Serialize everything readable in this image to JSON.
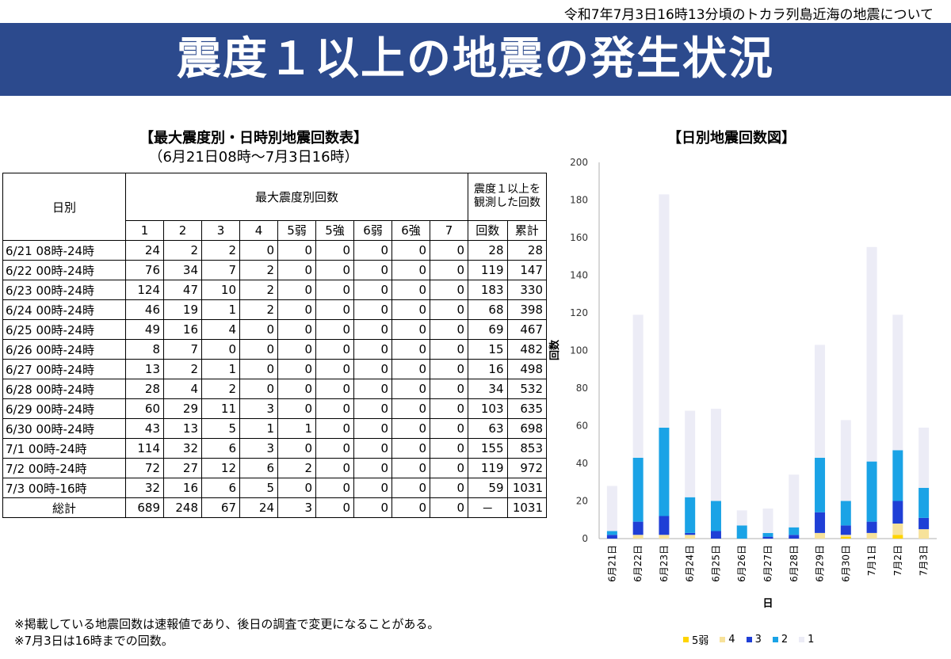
{
  "header": {
    "subtitle": "令和7年7月3日16時13分頃のトカラ列島近海の地震について",
    "title": "震度１以上の地震の発生状況"
  },
  "table": {
    "title": "【最大震度別・日時別地震回数表】",
    "period": "（6月21日08時～7月3日16時）",
    "day_header": "日別",
    "intensity_header": "最大震度別回数",
    "observed_header": "震度１以上を観測した回数",
    "columns": [
      "1",
      "2",
      "3",
      "4",
      "5弱",
      "5強",
      "6弱",
      "6強",
      "7"
    ],
    "count_header": "回数",
    "cumulative_header": "累計",
    "rows": [
      {
        "day": "6/21 08時-24時",
        "values": [
          24,
          2,
          2,
          0,
          0,
          0,
          0,
          0,
          0
        ],
        "count": "28",
        "cum": "28"
      },
      {
        "day": "6/22 00時-24時",
        "values": [
          76,
          34,
          7,
          2,
          0,
          0,
          0,
          0,
          0
        ],
        "count": "119",
        "cum": "147"
      },
      {
        "day": "6/23 00時-24時",
        "values": [
          124,
          47,
          10,
          2,
          0,
          0,
          0,
          0,
          0
        ],
        "count": "183",
        "cum": "330"
      },
      {
        "day": "6/24 00時-24時",
        "values": [
          46,
          19,
          1,
          2,
          0,
          0,
          0,
          0,
          0
        ],
        "count": "68",
        "cum": "398"
      },
      {
        "day": "6/25 00時-24時",
        "values": [
          49,
          16,
          4,
          0,
          0,
          0,
          0,
          0,
          0
        ],
        "count": "69",
        "cum": "467"
      },
      {
        "day": "6/26 00時-24時",
        "values": [
          8,
          7,
          0,
          0,
          0,
          0,
          0,
          0,
          0
        ],
        "count": "15",
        "cum": "482"
      },
      {
        "day": "6/27 00時-24時",
        "values": [
          13,
          2,
          1,
          0,
          0,
          0,
          0,
          0,
          0
        ],
        "count": "16",
        "cum": "498"
      },
      {
        "day": "6/28 00時-24時",
        "values": [
          28,
          4,
          2,
          0,
          0,
          0,
          0,
          0,
          0
        ],
        "count": "34",
        "cum": "532"
      },
      {
        "day": "6/29 00時-24時",
        "values": [
          60,
          29,
          11,
          3,
          0,
          0,
          0,
          0,
          0
        ],
        "count": "103",
        "cum": "635"
      },
      {
        "day": "6/30 00時-24時",
        "values": [
          43,
          13,
          5,
          1,
          1,
          0,
          0,
          0,
          0
        ],
        "count": "63",
        "cum": "698"
      },
      {
        "day": "7/1 00時-24時",
        "values": [
          114,
          32,
          6,
          3,
          0,
          0,
          0,
          0,
          0
        ],
        "count": "155",
        "cum": "853"
      },
      {
        "day": "7/2 00時-24時",
        "values": [
          72,
          27,
          12,
          6,
          2,
          0,
          0,
          0,
          0
        ],
        "count": "119",
        "cum": "972"
      },
      {
        "day": "7/3 00時-16時",
        "values": [
          32,
          16,
          6,
          5,
          0,
          0,
          0,
          0,
          0
        ],
        "count": "59",
        "cum": "1031"
      }
    ],
    "total_row": {
      "day": "総計",
      "values": [
        689,
        248,
        67,
        24,
        3,
        0,
        0,
        0,
        0
      ],
      "count": "－",
      "cum": "1031"
    }
  },
  "notes": [
    "※掲載している地震回数は速報値であり、後日の調査で変更になることがある。",
    "※7月3日は16時までの回数。"
  ],
  "chart_data": {
    "type": "bar",
    "stacked": true,
    "title": "【日別地震回数図】",
    "xlabel": "日",
    "ylabel": "回数",
    "ylim": [
      0,
      200
    ],
    "yticks": [
      0,
      20,
      40,
      60,
      80,
      100,
      120,
      140,
      160,
      180,
      200
    ],
    "categories": [
      "6月21日",
      "6月22日",
      "6月23日",
      "6月24日",
      "6月25日",
      "6月26日",
      "6月27日",
      "6月28日",
      "6月29日",
      "6月30日",
      "7月1日",
      "7月2日",
      "7月3日"
    ],
    "series": [
      {
        "name": "5弱",
        "color": "#ffd400",
        "values": [
          0,
          0,
          0,
          0,
          0,
          0,
          0,
          0,
          0,
          1,
          0,
          2,
          0
        ]
      },
      {
        "name": "4",
        "color": "#f7e29a",
        "values": [
          0,
          2,
          2,
          2,
          0,
          0,
          0,
          0,
          3,
          1,
          3,
          6,
          5
        ]
      },
      {
        "name": "3",
        "color": "#1f3fd6",
        "values": [
          2,
          7,
          10,
          1,
          4,
          0,
          1,
          2,
          11,
          5,
          6,
          12,
          6
        ]
      },
      {
        "name": "2",
        "color": "#1aa3e6",
        "values": [
          2,
          34,
          47,
          19,
          16,
          7,
          2,
          4,
          29,
          13,
          32,
          27,
          16
        ]
      },
      {
        "name": "1",
        "color": "#ececf6",
        "values": [
          24,
          76,
          124,
          46,
          49,
          8,
          13,
          28,
          60,
          43,
          114,
          72,
          32
        ]
      }
    ],
    "legend_position": "bottom",
    "grid": false
  }
}
